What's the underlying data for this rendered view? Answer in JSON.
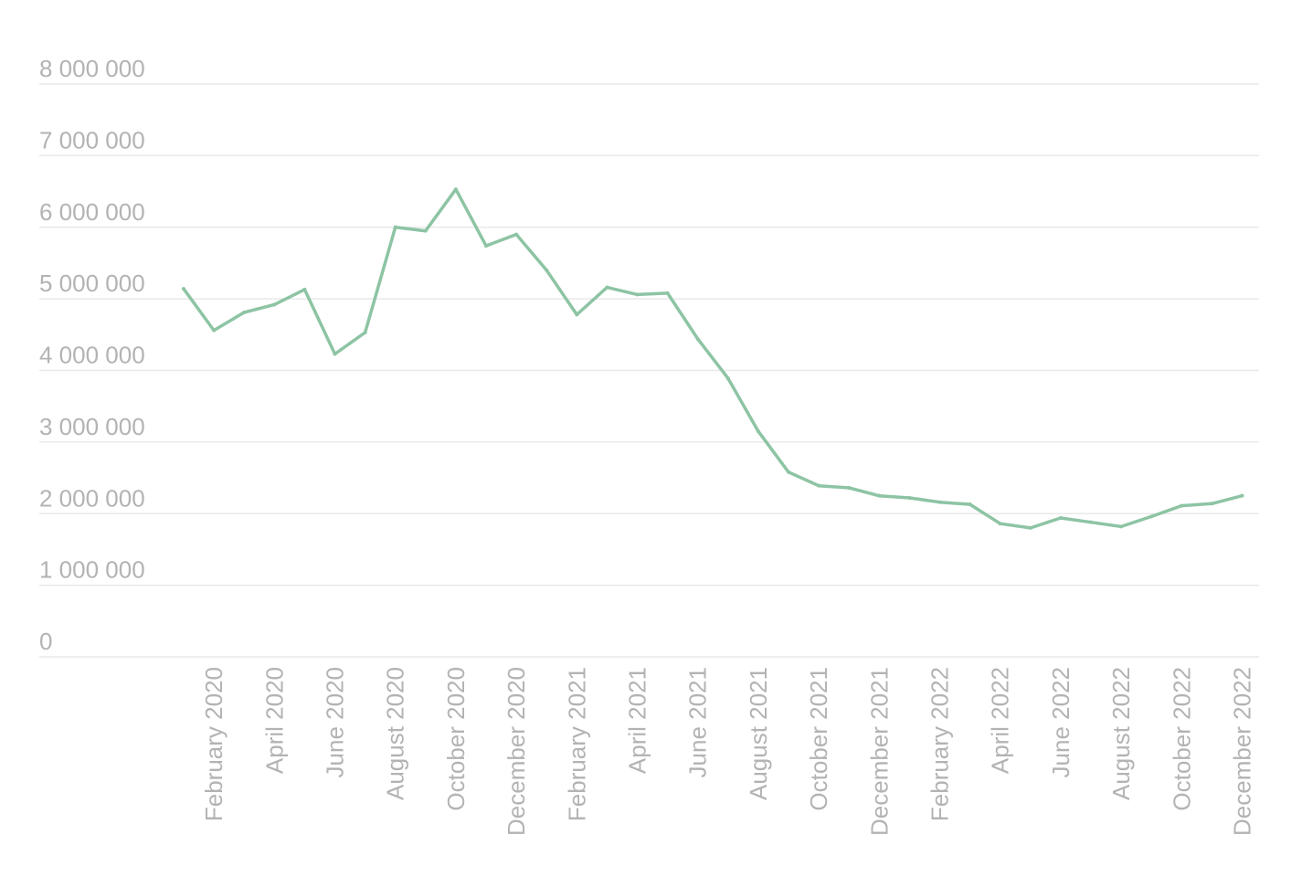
{
  "chart_data": {
    "type": "line",
    "title": "",
    "xlabel": "",
    "ylabel": "",
    "ylim": [
      0,
      8000000
    ],
    "yticks": [
      0,
      1000000,
      2000000,
      3000000,
      4000000,
      5000000,
      6000000,
      7000000,
      8000000
    ],
    "ytick_labels": [
      "0",
      "1 000 000",
      "2 000 000",
      "3 000 000",
      "4 000 000",
      "5 000 000",
      "6 000 000",
      "7 000 000",
      "8 000 000"
    ],
    "grid": true,
    "legend": "none",
    "x": [
      "January 2020",
      "February 2020",
      "March 2020",
      "April 2020",
      "May 2020",
      "June 2020",
      "July 2020",
      "August 2020",
      "September 2020",
      "October 2020",
      "November 2020",
      "December 2020",
      "January 2021",
      "February 2021",
      "March 2021",
      "April 2021",
      "May 2021",
      "June 2021",
      "July 2021",
      "August 2021",
      "September 2021",
      "October 2021",
      "November 2021",
      "December 2021",
      "January 2022",
      "February 2022",
      "March 2022",
      "April 2022",
      "May 2022",
      "June 2022",
      "July 2022",
      "August 2022",
      "September 2022",
      "October 2022",
      "November 2022",
      "December 2022"
    ],
    "xtick_labels": [
      "February 2020",
      "April 2020",
      "June 2020",
      "August 2020",
      "October 2020",
      "December 2020",
      "February 2021",
      "April 2021",
      "June 2021",
      "August 2021",
      "October 2021",
      "December 2021",
      "February 2022",
      "April 2022",
      "June 2022",
      "August 2022",
      "October 2022",
      "December 2022"
    ],
    "series": [
      {
        "color": "#8dc4a4",
        "values": [
          5140000,
          4560000,
          4810000,
          4920000,
          5130000,
          4230000,
          4530000,
          6000000,
          5950000,
          6530000,
          5740000,
          5900000,
          5400000,
          4780000,
          5160000,
          5060000,
          5080000,
          4440000,
          3890000,
          3150000,
          2580000,
          2390000,
          2360000,
          2250000,
          2220000,
          2160000,
          2130000,
          1860000,
          1800000,
          1940000,
          1880000,
          1820000,
          1960000,
          2110000,
          2140000,
          2250000
        ]
      }
    ]
  }
}
